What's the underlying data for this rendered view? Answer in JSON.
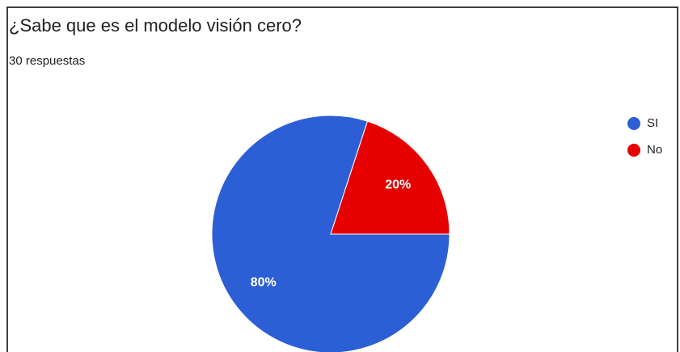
{
  "chart_data": {
    "type": "pie",
    "title": "¿Sabe que es el modelo visión cero?",
    "subtitle": "30 respuestas",
    "categories": [
      "SI",
      "No"
    ],
    "values": [
      80,
      20
    ],
    "value_labels": [
      "80%",
      "20%"
    ],
    "colors": [
      "#2c5fd6",
      "#e60000"
    ],
    "legend": "right"
  }
}
